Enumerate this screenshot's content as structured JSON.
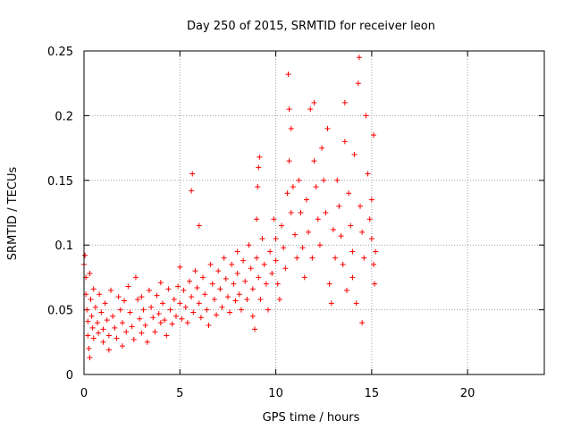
{
  "chart_data": {
    "type": "scatter",
    "title": "Day 250 of 2015, SRMTID for receiver leon",
    "xlabel": "GPS time / hours",
    "ylabel": "SRMTID / TECUs",
    "xlim": [
      0,
      24
    ],
    "ylim": [
      0,
      0.25
    ],
    "x_ticks": [
      0,
      5,
      10,
      15,
      20
    ],
    "y_ticks": [
      0,
      0.05,
      0.1,
      0.15,
      0.2,
      0.25
    ],
    "x_tick_labels": [
      "0",
      "5",
      "10",
      "15",
      "20"
    ],
    "y_tick_labels": [
      "0",
      "0.05",
      "0.1",
      "0.15",
      "0.2",
      "0.25"
    ],
    "grid": true,
    "marker": "+",
    "marker_color": "#ff0000",
    "series": [
      {
        "name": "SRMTID",
        "points": [
          [
            0.0,
            0.085
          ],
          [
            0.05,
            0.092
          ],
          [
            0.1,
            0.075
          ],
          [
            0.1,
            0.062
          ],
          [
            0.15,
            0.05
          ],
          [
            0.2,
            0.041
          ],
          [
            0.2,
            0.03
          ],
          [
            0.25,
            0.02
          ],
          [
            0.3,
            0.013
          ],
          [
            0.3,
            0.078
          ],
          [
            0.35,
            0.058
          ],
          [
            0.4,
            0.045
          ],
          [
            0.45,
            0.036
          ],
          [
            0.5,
            0.028
          ],
          [
            0.5,
            0.066
          ],
          [
            0.6,
            0.052
          ],
          [
            0.7,
            0.04
          ],
          [
            0.75,
            0.032
          ],
          [
            0.8,
            0.062
          ],
          [
            0.9,
            0.048
          ],
          [
            1.0,
            0.035
          ],
          [
            1.0,
            0.025
          ],
          [
            1.1,
            0.055
          ],
          [
            1.2,
            0.042
          ],
          [
            1.3,
            0.03
          ],
          [
            1.3,
            0.019
          ],
          [
            1.4,
            0.065
          ],
          [
            1.5,
            0.045
          ],
          [
            1.6,
            0.036
          ],
          [
            1.7,
            0.028
          ],
          [
            1.8,
            0.06
          ],
          [
            1.9,
            0.05
          ],
          [
            2.0,
            0.04
          ],
          [
            2.0,
            0.022
          ],
          [
            2.1,
            0.057
          ],
          [
            2.2,
            0.033
          ],
          [
            2.3,
            0.068
          ],
          [
            2.4,
            0.048
          ],
          [
            2.5,
            0.037
          ],
          [
            2.6,
            0.027
          ],
          [
            2.7,
            0.075
          ],
          [
            2.8,
            0.058
          ],
          [
            2.9,
            0.043
          ],
          [
            3.0,
            0.032
          ],
          [
            3.0,
            0.06
          ],
          [
            3.1,
            0.05
          ],
          [
            3.2,
            0.038
          ],
          [
            3.3,
            0.025
          ],
          [
            3.4,
            0.065
          ],
          [
            3.5,
            0.052
          ],
          [
            3.6,
            0.044
          ],
          [
            3.7,
            0.033
          ],
          [
            3.8,
            0.061
          ],
          [
            3.9,
            0.047
          ],
          [
            4.0,
            0.04
          ],
          [
            4.0,
            0.071
          ],
          [
            4.1,
            0.055
          ],
          [
            4.2,
            0.042
          ],
          [
            4.3,
            0.03
          ],
          [
            4.4,
            0.066
          ],
          [
            4.5,
            0.05
          ],
          [
            4.6,
            0.039
          ],
          [
            4.7,
            0.058
          ],
          [
            4.8,
            0.045
          ],
          [
            4.9,
            0.068
          ],
          [
            5.0,
            0.055
          ],
          [
            5.0,
            0.083
          ],
          [
            5.1,
            0.043
          ],
          [
            5.2,
            0.065
          ],
          [
            5.3,
            0.052
          ],
          [
            5.4,
            0.04
          ],
          [
            5.5,
            0.072
          ],
          [
            5.6,
            0.06
          ],
          [
            5.6,
            0.142
          ],
          [
            5.65,
            0.155
          ],
          [
            5.7,
            0.048
          ],
          [
            5.8,
            0.08
          ],
          [
            5.9,
            0.067
          ],
          [
            6.0,
            0.055
          ],
          [
            6.0,
            0.115
          ],
          [
            6.1,
            0.044
          ],
          [
            6.2,
            0.075
          ],
          [
            6.3,
            0.062
          ],
          [
            6.4,
            0.05
          ],
          [
            6.5,
            0.038
          ],
          [
            6.6,
            0.085
          ],
          [
            6.7,
            0.07
          ],
          [
            6.8,
            0.058
          ],
          [
            6.9,
            0.046
          ],
          [
            7.0,
            0.08
          ],
          [
            7.1,
            0.066
          ],
          [
            7.2,
            0.052
          ],
          [
            7.3,
            0.09
          ],
          [
            7.4,
            0.074
          ],
          [
            7.5,
            0.06
          ],
          [
            7.6,
            0.048
          ],
          [
            7.7,
            0.085
          ],
          [
            7.8,
            0.07
          ],
          [
            7.9,
            0.057
          ],
          [
            8.0,
            0.095
          ],
          [
            8.0,
            0.078
          ],
          [
            8.1,
            0.062
          ],
          [
            8.2,
            0.05
          ],
          [
            8.3,
            0.088
          ],
          [
            8.4,
            0.072
          ],
          [
            8.5,
            0.058
          ],
          [
            8.6,
            0.1
          ],
          [
            8.7,
            0.082
          ],
          [
            8.8,
            0.066
          ],
          [
            8.8,
            0.045
          ],
          [
            8.9,
            0.035
          ],
          [
            9.0,
            0.12
          ],
          [
            9.0,
            0.09
          ],
          [
            9.05,
            0.145
          ],
          [
            9.1,
            0.075
          ],
          [
            9.1,
            0.16
          ],
          [
            9.15,
            0.168
          ],
          [
            9.2,
            0.058
          ],
          [
            9.3,
            0.105
          ],
          [
            9.4,
            0.085
          ],
          [
            9.5,
            0.07
          ],
          [
            9.6,
            0.05
          ],
          [
            9.7,
            0.095
          ],
          [
            9.8,
            0.078
          ],
          [
            9.9,
            0.12
          ],
          [
            10.0,
            0.105
          ],
          [
            10.0,
            0.088
          ],
          [
            10.1,
            0.07
          ],
          [
            10.2,
            0.058
          ],
          [
            10.3,
            0.115
          ],
          [
            10.4,
            0.098
          ],
          [
            10.5,
            0.082
          ],
          [
            10.6,
            0.14
          ],
          [
            10.65,
            0.232
          ],
          [
            10.7,
            0.165
          ],
          [
            10.7,
            0.205
          ],
          [
            10.8,
            0.125
          ],
          [
            10.8,
            0.19
          ],
          [
            10.9,
            0.145
          ],
          [
            11.0,
            0.108
          ],
          [
            11.1,
            0.09
          ],
          [
            11.2,
            0.15
          ],
          [
            11.3,
            0.125
          ],
          [
            11.4,
            0.098
          ],
          [
            11.5,
            0.075
          ],
          [
            11.6,
            0.135
          ],
          [
            11.7,
            0.11
          ],
          [
            11.8,
            0.205
          ],
          [
            11.9,
            0.09
          ],
          [
            12.0,
            0.165
          ],
          [
            12.0,
            0.21
          ],
          [
            12.1,
            0.145
          ],
          [
            12.2,
            0.12
          ],
          [
            12.3,
            0.1
          ],
          [
            12.4,
            0.175
          ],
          [
            12.5,
            0.15
          ],
          [
            12.6,
            0.125
          ],
          [
            12.7,
            0.19
          ],
          [
            12.8,
            0.07
          ],
          [
            12.9,
            0.055
          ],
          [
            13.0,
            0.112
          ],
          [
            13.1,
            0.09
          ],
          [
            13.2,
            0.15
          ],
          [
            13.3,
            0.13
          ],
          [
            13.4,
            0.107
          ],
          [
            13.5,
            0.085
          ],
          [
            13.6,
            0.18
          ],
          [
            13.6,
            0.21
          ],
          [
            13.7,
            0.065
          ],
          [
            13.8,
            0.14
          ],
          [
            13.9,
            0.115
          ],
          [
            14.0,
            0.095
          ],
          [
            14.0,
            0.075
          ],
          [
            14.1,
            0.17
          ],
          [
            14.2,
            0.055
          ],
          [
            14.3,
            0.225
          ],
          [
            14.35,
            0.245
          ],
          [
            14.4,
            0.13
          ],
          [
            14.5,
            0.11
          ],
          [
            14.5,
            0.04
          ],
          [
            14.6,
            0.09
          ],
          [
            14.7,
            0.2
          ],
          [
            14.8,
            0.155
          ],
          [
            14.9,
            0.12
          ],
          [
            15.0,
            0.135
          ],
          [
            15.0,
            0.105
          ],
          [
            15.1,
            0.185
          ],
          [
            15.1,
            0.085
          ],
          [
            15.15,
            0.07
          ],
          [
            15.2,
            0.095
          ]
        ]
      }
    ]
  }
}
